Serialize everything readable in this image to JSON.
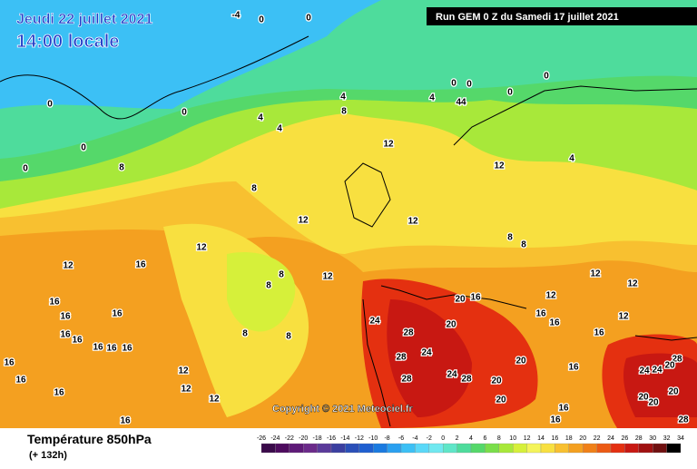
{
  "header": {
    "date": "Jeudi 22 juillet 2021",
    "time": "14:00 locale",
    "run": "Run GEM 0 Z du Samedi 17 juillet 2021"
  },
  "copyright": "Copyright © 2021 Meteociel.fr",
  "footer": {
    "title": "Température 850hPa",
    "lead": "(+ 132h)"
  },
  "legend": {
    "ticks": [
      -26,
      -24,
      -22,
      -20,
      -18,
      -16,
      -14,
      -12,
      -10,
      -8,
      -6,
      -4,
      -2,
      0,
      2,
      4,
      6,
      8,
      10,
      12,
      14,
      16,
      18,
      20,
      22,
      24,
      26,
      28,
      30,
      32,
      34
    ],
    "colors": [
      "#3a0a4a",
      "#4d0b5e",
      "#5e1a78",
      "#6b2a8a",
      "#5a3a9a",
      "#3b3fa0",
      "#2a4fb8",
      "#1e5fd0",
      "#1a7ae0",
      "#2aa0f0",
      "#3cc0f5",
      "#5ad8f8",
      "#70e8f0",
      "#5fe6c8",
      "#4edc9c",
      "#55d86a",
      "#7ade4a",
      "#a8e83a",
      "#d6f03a",
      "#f4f45a",
      "#f8e040",
      "#f8c030",
      "#f4a020",
      "#f08018",
      "#ec5a14",
      "#e43010",
      "#c81812",
      "#a01010",
      "#701010",
      "#000000"
    ]
  },
  "contour_labels": [
    -4,
    0,
    0,
    0,
    0,
    0,
    0,
    0,
    0,
    0,
    0,
    4,
    8,
    4,
    44,
    4,
    4,
    8,
    12,
    12,
    4,
    8,
    12,
    12,
    8,
    8,
    12,
    12,
    16,
    8,
    8,
    12,
    8,
    8,
    16,
    16,
    16,
    16,
    16,
    16,
    16,
    16,
    16,
    12,
    12,
    12,
    16,
    16,
    16,
    20,
    16,
    24,
    28,
    20,
    24,
    28,
    28,
    24,
    28,
    20,
    20,
    20,
    16,
    16,
    16,
    12,
    12,
    16,
    16,
    12,
    12,
    16,
    28,
    20,
    24,
    24,
    20,
    20,
    20,
    28
  ]
}
